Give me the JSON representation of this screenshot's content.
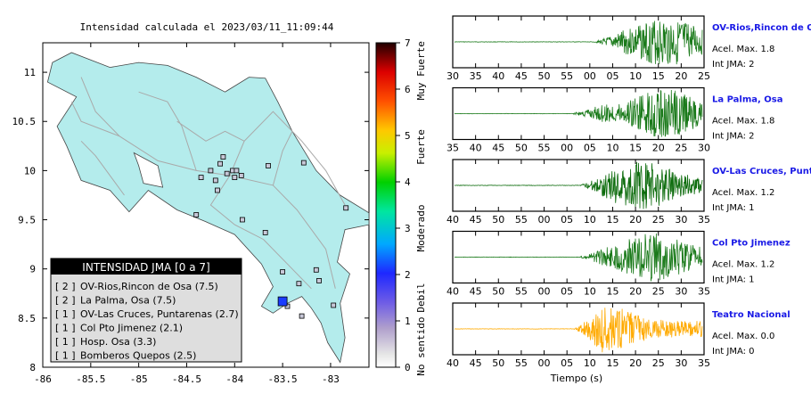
{
  "map": {
    "title": "Intensidad calculada el 2023/03/11_11:09:44",
    "x_ticks": [
      "-86",
      "-85.5",
      "-85",
      "-84.5",
      "-84",
      "-83.5",
      "-83"
    ],
    "y_ticks": [
      "8",
      "8.5",
      "9",
      "9.5",
      "10",
      "10.5",
      "11"
    ],
    "xlim": [
      -86,
      -82.6
    ],
    "ylim": [
      8,
      11.3
    ],
    "land_color": "#b4ecec",
    "stations_plotted": [
      {
        "lon": -84.15,
        "lat": 10.07
      },
      {
        "lon": -84.12,
        "lat": 10.14
      },
      {
        "lon": -84.08,
        "lat": 9.97
      },
      {
        "lon": -84.02,
        "lat": 10.0
      },
      {
        "lon": -84.0,
        "lat": 9.93
      },
      {
        "lon": -83.93,
        "lat": 9.95
      },
      {
        "lon": -83.98,
        "lat": 10.0
      },
      {
        "lon": -84.25,
        "lat": 10.0
      },
      {
        "lon": -84.2,
        "lat": 9.9
      },
      {
        "lon": -84.18,
        "lat": 9.8
      },
      {
        "lon": -83.65,
        "lat": 10.05
      },
      {
        "lon": -83.28,
        "lat": 10.08
      },
      {
        "lon": -84.35,
        "lat": 9.93
      },
      {
        "lon": -84.4,
        "lat": 9.55
      },
      {
        "lon": -83.92,
        "lat": 9.5
      },
      {
        "lon": -83.68,
        "lat": 9.37
      },
      {
        "lon": -83.5,
        "lat": 8.97
      },
      {
        "lon": -83.33,
        "lat": 8.85
      },
      {
        "lon": -83.15,
        "lat": 8.99
      },
      {
        "lon": -83.12,
        "lat": 8.88
      },
      {
        "lon": -82.97,
        "lat": 8.63
      },
      {
        "lon": -82.84,
        "lat": 9.62
      },
      {
        "lon": -83.3,
        "lat": 8.52
      },
      {
        "lon": -83.45,
        "lat": 8.62
      }
    ],
    "epicenter": {
      "lon": -83.5,
      "lat": 8.67
    },
    "colorbar": {
      "ticks": [
        "0",
        "1",
        "2",
        "3",
        "4",
        "5",
        "6",
        "7"
      ],
      "levels": [
        "No sentido",
        "Debil",
        "Moderado",
        "Fuerte",
        "Muy Fuerte"
      ]
    },
    "legend": {
      "header": "INTENSIDAD JMA [0 a 7]",
      "rows": [
        {
          "int": "[ 2 ]",
          "label": "OV-Rios,Rincon de Osa (7.5)"
        },
        {
          "int": "[ 2 ]",
          "label": "La Palma, Osa (7.5)"
        },
        {
          "int": "[ 1 ]",
          "label": "OV-Las Cruces, Puntarenas (2.7)"
        },
        {
          "int": "[ 1 ]",
          "label": "Col Pto Jimenez (2.1)"
        },
        {
          "int": "[ 1 ]",
          "label": "Hosp. Osa (3.3)"
        },
        {
          "int": "[ 1 ]",
          "label": "Bomberos Quepos (2.5)"
        }
      ]
    }
  },
  "traces": [
    {
      "name": "OV-Rios,Rincon de Osa",
      "acel": "Acel. Max. 1.8",
      "jma": "Int JMA: 2",
      "color": "#1a7a1a",
      "ticks": [
        "30",
        "35",
        "40",
        "45",
        "50",
        "55",
        "00",
        "05",
        "10",
        "15",
        "20",
        "25"
      ],
      "onset": 0.56,
      "peak": 0.85
    },
    {
      "name": "La Palma, Osa",
      "acel": "Acel. Max. 1.8",
      "jma": "Int JMA: 2",
      "color": "#1a7a1a",
      "ticks": [
        "35",
        "40",
        "45",
        "50",
        "55",
        "00",
        "05",
        "10",
        "15",
        "20",
        "25",
        "30"
      ],
      "onset": 0.47,
      "peak": 0.85
    },
    {
      "name": "OV-Las Cruces, Puntarenas",
      "acel": "Acel. Max. 1.2",
      "jma": "Int JMA: 1",
      "color": "#0b6b0b",
      "ticks": [
        "40",
        "45",
        "50",
        "55",
        "00",
        "05",
        "10",
        "15",
        "20",
        "25",
        "30",
        "35"
      ],
      "onset": 0.5,
      "peak": 0.75
    },
    {
      "name": "Col Pto Jimenez",
      "acel": "Acel. Max. 1.2",
      "jma": "Int JMA: 1",
      "color": "#1a7a1a",
      "ticks": [
        "40",
        "45",
        "50",
        "55",
        "00",
        "05",
        "10",
        "15",
        "20",
        "25",
        "30",
        "35"
      ],
      "onset": 0.5,
      "peak": 0.8
    },
    {
      "name": "Teatro Nacional",
      "acel": "Acel. Max. 0.0",
      "jma": "Int JMA: 0",
      "color": "#ffaa00",
      "ticks": [
        "40",
        "45",
        "50",
        "55",
        "00",
        "05",
        "10",
        "15",
        "20",
        "25",
        "30",
        "35"
      ],
      "onset": 0.48,
      "peak": 0.6
    }
  ],
  "traces_xlabel": "Tiempo (s)",
  "chart_data": [
    {
      "type": "scatter",
      "title": "Intensidad calculada el 2023/03/11_11:09:44",
      "xlim": [
        -86,
        -82.6
      ],
      "ylim": [
        8,
        11.3
      ],
      "legend": "bottom-left"
    },
    {
      "type": "line",
      "xlabel": "Tiempo (s)",
      "series": [
        {
          "name": "OV-Rios,Rincon de Osa",
          "values": []
        },
        {
          "name": "La Palma, Osa",
          "values": []
        },
        {
          "name": "OV-Las Cruces, Puntarenas",
          "values": []
        },
        {
          "name": "Col Pto Jimenez",
          "values": []
        },
        {
          "name": "Teatro Nacional",
          "values": []
        }
      ]
    }
  ]
}
